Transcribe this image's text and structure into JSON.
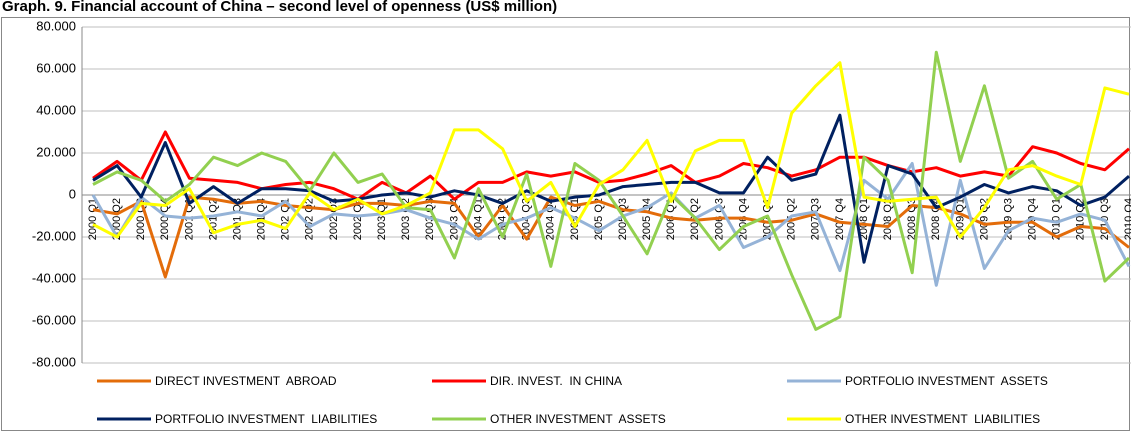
{
  "chart_data": {
    "type": "line",
    "title": "Graph. 9. Financial account of China – second level of openness (US$ million)",
    "categories": [
      "2000 Q1",
      "2000 Q2",
      "2000 Q3",
      "2000 Q4",
      "2001 Q1",
      "2001 Q2",
      "2001 Q3",
      "2001 Q4",
      "2002 Q1",
      "2002 Q2",
      "2002 Q3",
      "2002 Q4",
      "2003 Q1",
      "2003 Q2",
      "2003 Q3",
      "2003 Q4",
      "2004 Q1",
      "2004 Q2",
      "2004 Q3",
      "2004 Q4",
      "2005 Q1",
      "2005 Q2",
      "2005 Q3",
      "2005 Q4",
      "2006 Q1",
      "2006 Q2",
      "2006 Q3",
      "2006 Q4",
      "2007 Q1",
      "2007 Q2",
      "2007 Q3",
      "2007 Q4",
      "2008 Q1",
      "2008 Q2",
      "2008 Q3",
      "2008 Q4",
      "2009 Q1",
      "2009 Q2",
      "2009 Q3",
      "2009 Q4",
      "2010 Q1",
      "2010 Q2",
      "2010 Q3",
      "2010 Q4"
    ],
    "series": [
      {
        "name": "DIRECT INVESTMENT  ABROAD",
        "color": "#e36c0a",
        "values": [
          -7000,
          -9000,
          -3000,
          -39000,
          -1000,
          -2000,
          -4000,
          -3000,
          -5000,
          -6000,
          -7000,
          -4000,
          -4000,
          -5000,
          -3000,
          -4000,
          -20000,
          -5000,
          -21000,
          -1000,
          -5000,
          -3000,
          -7000,
          -8000,
          -11000,
          -12000,
          -11000,
          -11000,
          -13000,
          -12000,
          -9000,
          -13000,
          -14000,
          -15000,
          -5000,
          -6000,
          -9000,
          -14000,
          -13000,
          -13000,
          -20000,
          -15000,
          -16000,
          -25000
        ]
      },
      {
        "name": "DIR. INVEST.  IN CHINA",
        "color": "#ff0000",
        "values": [
          8000,
          16000,
          7000,
          30000,
          8000,
          7000,
          6000,
          3000,
          5000,
          6000,
          3000,
          -2000,
          6000,
          1000,
          9000,
          -2000,
          6000,
          6000,
          11000,
          9000,
          11000,
          6000,
          7000,
          10000,
          14000,
          6000,
          9000,
          15000,
          13000,
          9000,
          12000,
          18000,
          18000,
          14000,
          11000,
          13000,
          9000,
          11000,
          9000,
          23000,
          20000,
          15000,
          12000,
          22000
        ]
      },
      {
        "name": "PORTFOLIO INVESTMENT  ASSETS",
        "color": "#95b3d7",
        "values": [
          0,
          -20000,
          -1000,
          -10000,
          -11000,
          -10000,
          -8000,
          -10000,
          -3000,
          -15000,
          -9000,
          -10000,
          -9000,
          -7000,
          -11000,
          -14000,
          -21000,
          -14000,
          -11000,
          -6000,
          -11000,
          -17000,
          -10000,
          -6000,
          1000,
          -11000,
          -5000,
          -25000,
          -20000,
          -10000,
          -8000,
          -36000,
          7000,
          -2000,
          15000,
          -43000,
          7000,
          -35000,
          -17000,
          -11000,
          -13000,
          -9000,
          -12000,
          -34000
        ]
      },
      {
        "name": "PORTFOLIO INVESTMENT  LIABILITIES",
        "color": "#002060",
        "values": [
          7000,
          14000,
          -1000,
          25000,
          -4000,
          4000,
          -4000,
          3000,
          3000,
          2000,
          -3000,
          -2000,
          0,
          1000,
          -1000,
          2000,
          0,
          -4000,
          2000,
          -3000,
          -1000,
          0,
          4000,
          5000,
          6000,
          6000,
          1000,
          1000,
          18000,
          7000,
          10000,
          38000,
          -32000,
          14000,
          10000,
          -6000,
          -1000,
          5000,
          1000,
          4000,
          2000,
          -5000,
          -1000,
          9000
        ]
      },
      {
        "name": "OTHER INVESTMENT  ASSETS",
        "color": "#92d050",
        "values": [
          5000,
          11000,
          7000,
          -3000,
          5000,
          18000,
          14000,
          20000,
          16000,
          2000,
          20000,
          6000,
          10000,
          -6000,
          -7000,
          -30000,
          3000,
          -20000,
          10000,
          -34000,
          15000,
          7000,
          -10000,
          -28000,
          0,
          -11000,
          -26000,
          -15000,
          -10000,
          -38000,
          -64000,
          -58000,
          18000,
          7000,
          -37000,
          68000,
          16000,
          52000,
          8000,
          16000,
          -2000,
          5000,
          -41000,
          -30000
        ]
      },
      {
        "name": "OTHER INVESTMENT  LIABILITIES",
        "color": "#ffff00",
        "values": [
          -14000,
          -20000,
          -4000,
          -5000,
          3000,
          -18000,
          -14000,
          -12000,
          -16000,
          1000,
          -7000,
          -2000,
          -9000,
          -5000,
          1000,
          31000,
          31000,
          22000,
          -3000,
          6000,
          -15000,
          5000,
          12000,
          26000,
          -3000,
          21000,
          26000,
          26000,
          -6000,
          39000,
          52000,
          63000,
          -1000,
          -3000,
          -2000,
          -1000,
          -20000,
          -6000,
          12000,
          14000,
          9000,
          5000,
          51000,
          48000
        ]
      }
    ],
    "ylim": [
      -80000,
      80000
    ],
    "yticks": [
      {
        "value": -80000,
        "label": "-80.000"
      },
      {
        "value": -60000,
        "label": "-60.000"
      },
      {
        "value": -40000,
        "label": "-40.000"
      },
      {
        "value": -20000,
        "label": "-20.000"
      },
      0,
      {
        "value": 20000,
        "label": "20.000"
      },
      {
        "value": 40000,
        "label": "40.000"
      },
      {
        "value": 60000,
        "label": "60.000"
      },
      {
        "value": 80000,
        "label": "80.000"
      }
    ],
    "grid": true
  }
}
